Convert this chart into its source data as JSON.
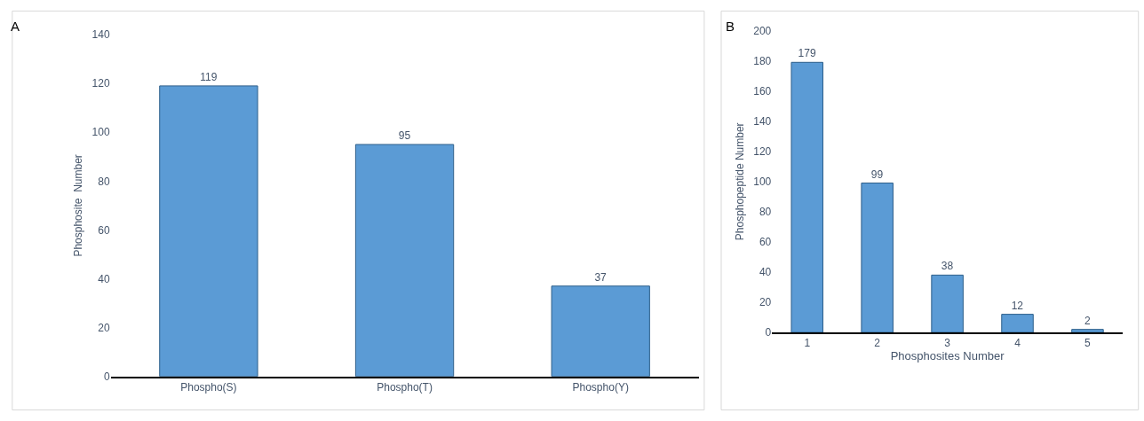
{
  "chart_data": [
    {
      "type": "bar",
      "title": "A",
      "ylabel": "Phosphosite  Number",
      "categories": [
        "Phospho(S)",
        "Phospho(T)",
        "Phospho(Y)"
      ],
      "values": [
        119,
        95,
        37
      ],
      "color": "#5b9bd5",
      "ylim": [
        0,
        140
      ],
      "yticks": [
        0,
        20,
        40,
        60,
        80,
        100,
        120,
        140
      ],
      "data_labels": true
    },
    {
      "type": "bar",
      "title": "B",
      "xlabel": "Phosphosites Number",
      "ylabel": "Phosphopeptide Number",
      "categories": [
        "1",
        "2",
        "3",
        "4",
        "5"
      ],
      "values": [
        179,
        99,
        38,
        12,
        2
      ],
      "color": "#5b9bd5",
      "ylim": [
        0,
        200
      ],
      "yticks": [
        0,
        20,
        40,
        60,
        80,
        100,
        120,
        140,
        160,
        180,
        200
      ],
      "data_labels": true
    }
  ]
}
